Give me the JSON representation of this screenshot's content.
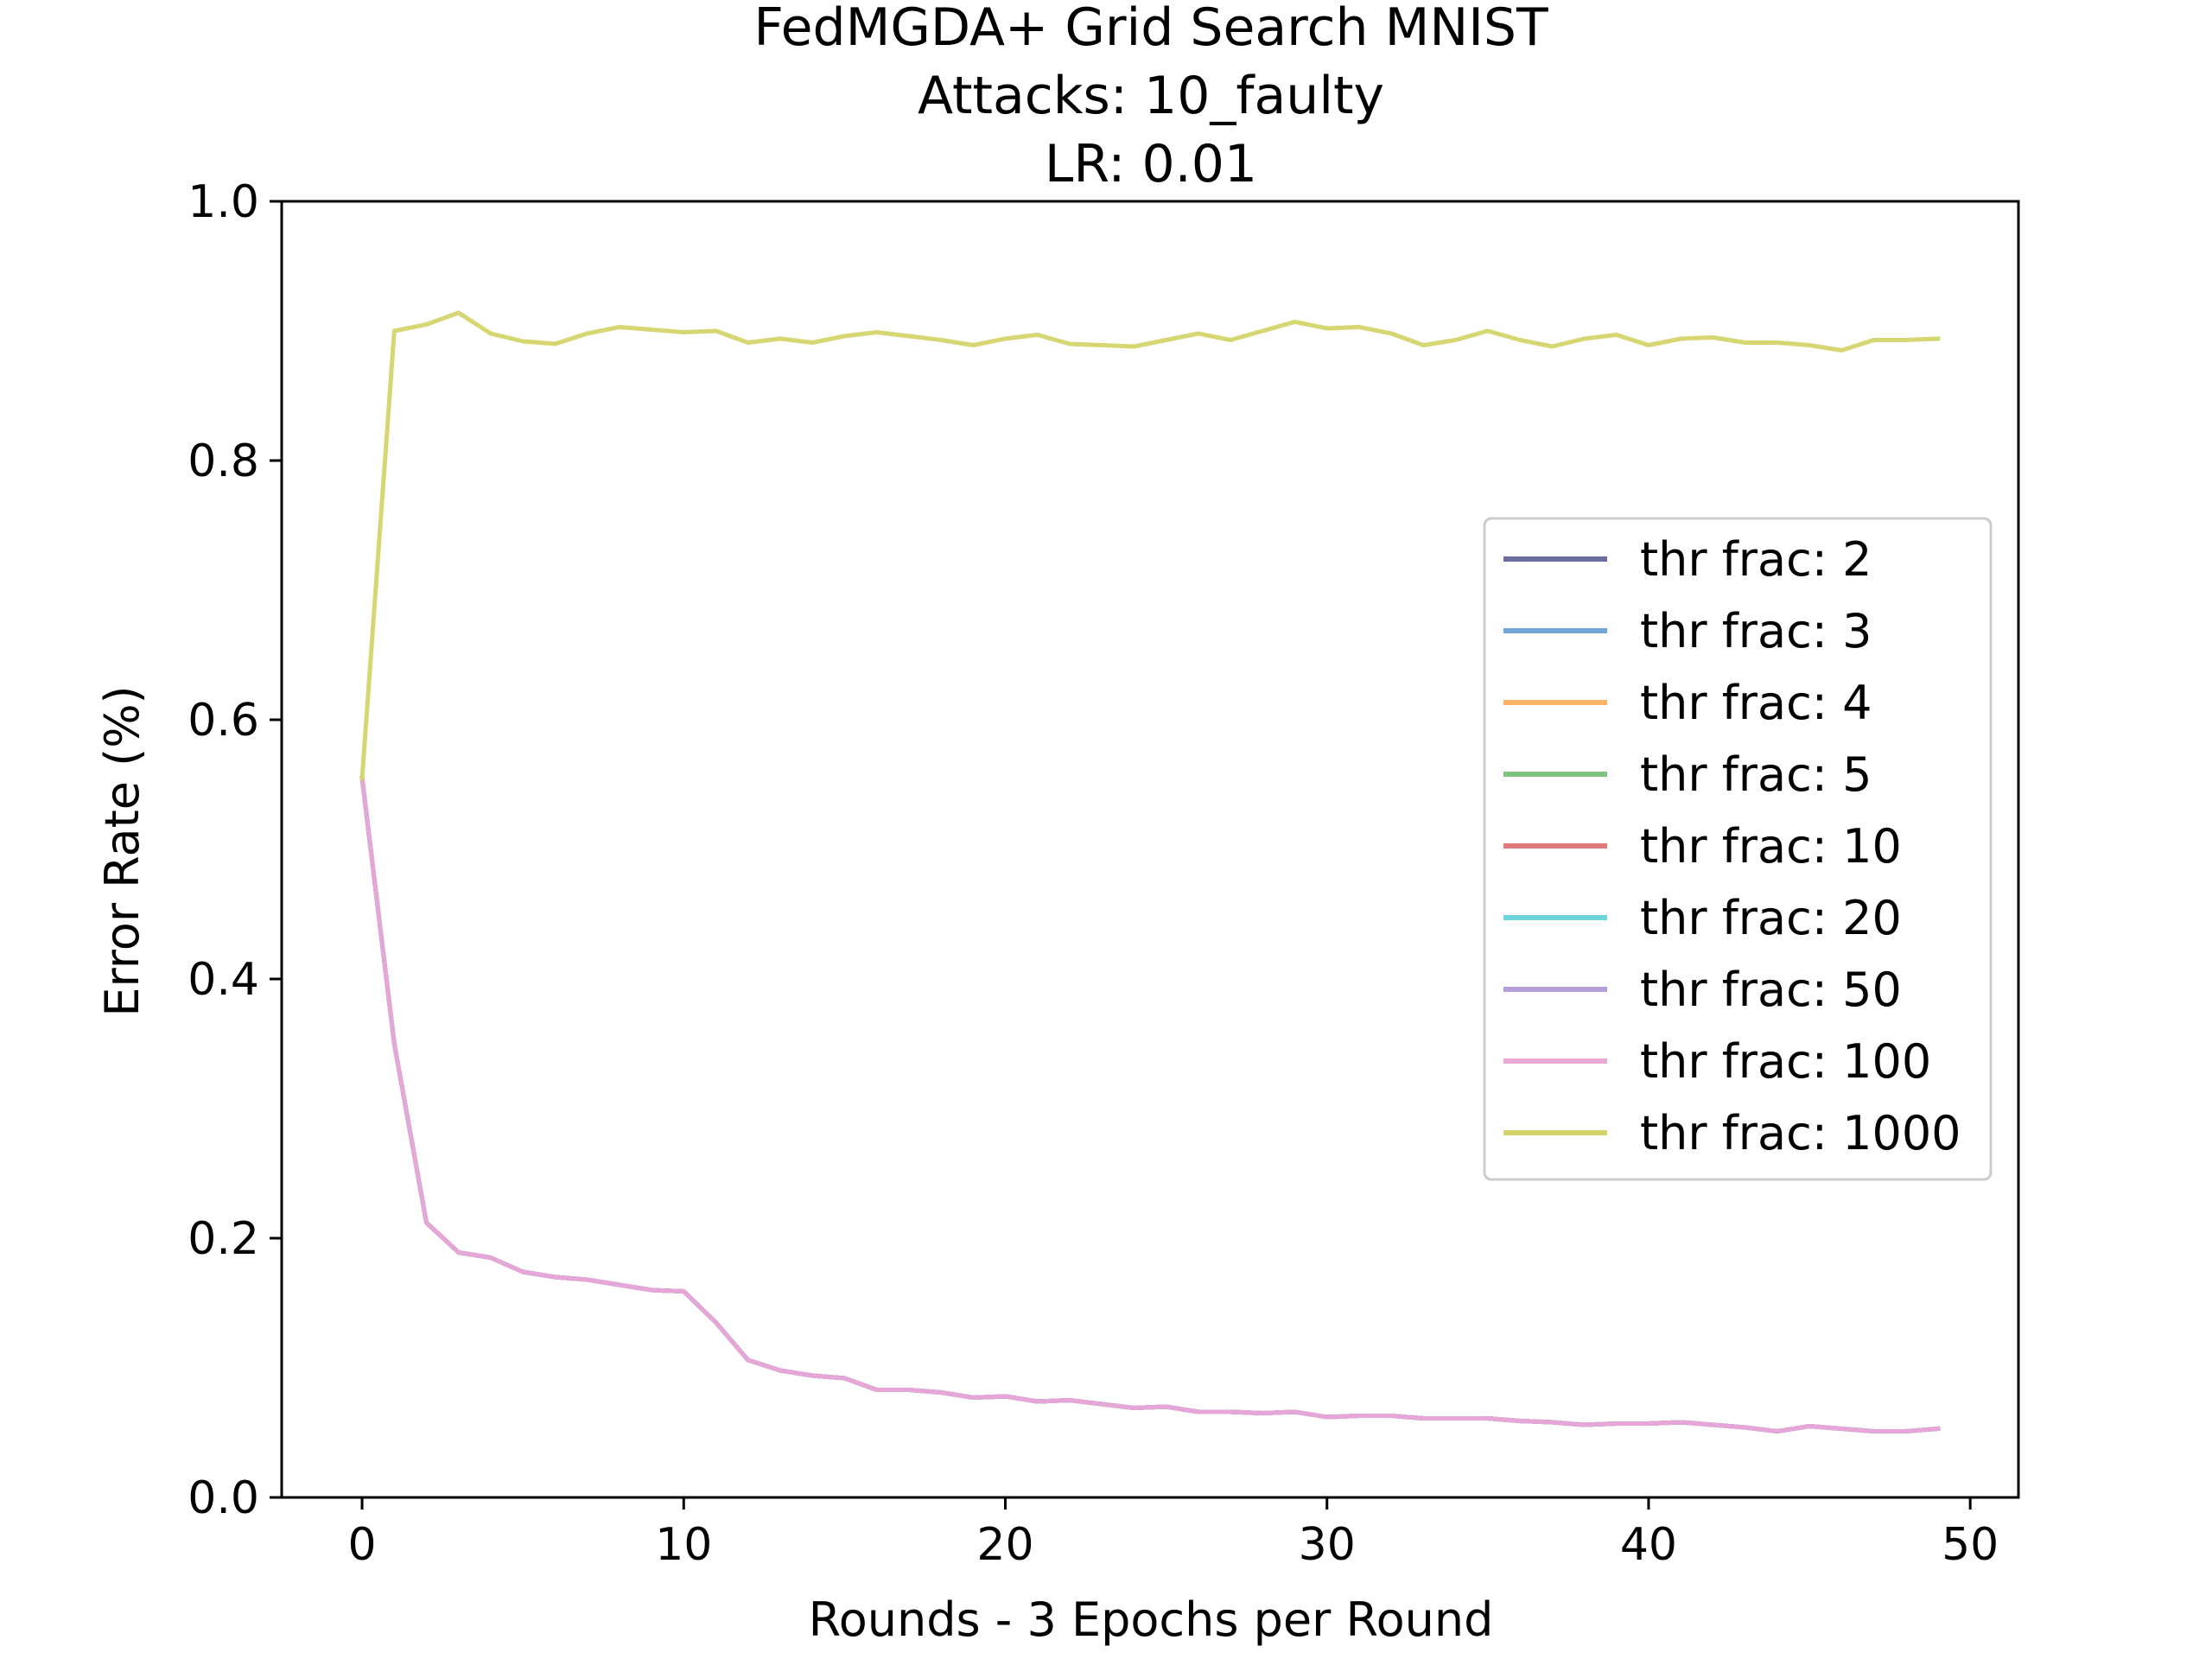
{
  "chart_data": {
    "type": "line",
    "title": [
      "FedMGDA+ Grid Search MNIST",
      "Attacks: 10_faulty",
      "LR: 0.01"
    ],
    "xlabel": "Rounds - 3 Epochs per Round",
    "ylabel": "Error Rate (%)",
    "xlim": [
      -2.5,
      51.5
    ],
    "ylim": [
      0.0,
      1.0
    ],
    "xticks": [
      0,
      10,
      20,
      30,
      40,
      50
    ],
    "xtick_labels": [
      "0",
      "10",
      "20",
      "30",
      "40",
      "50"
    ],
    "yticks": [
      0.0,
      0.2,
      0.4,
      0.6,
      0.8,
      1.0
    ],
    "ytick_labels": [
      "0.0",
      "0.2",
      "0.4",
      "0.6",
      "0.8",
      "1.0"
    ],
    "grid": false,
    "legend_position": "center-right",
    "x": [
      0,
      1,
      2,
      3,
      4,
      5,
      6,
      7,
      8,
      9,
      10,
      11,
      12,
      13,
      14,
      15,
      16,
      17,
      18,
      19,
      20,
      21,
      22,
      23,
      24,
      25,
      26,
      27,
      28,
      29,
      30,
      31,
      32,
      33,
      34,
      35,
      36,
      37,
      38,
      39,
      40,
      41,
      42,
      43,
      44,
      45,
      46,
      47,
      48,
      49
    ],
    "series": [
      {
        "name": "thr frac: 2",
        "color": "#6b6fa0",
        "values": [
          0.555,
          0.35,
          0.212,
          0.189,
          0.185,
          0.174,
          0.17,
          0.168,
          0.164,
          0.16,
          0.159,
          0.135,
          0.106,
          0.098,
          0.094,
          0.092,
          0.083,
          0.083,
          0.081,
          0.077,
          0.078,
          0.074,
          0.075,
          0.072,
          0.069,
          0.07,
          0.066,
          0.066,
          0.065,
          0.066,
          0.062,
          0.063,
          0.063,
          0.061,
          0.061,
          0.061,
          0.059,
          0.058,
          0.056,
          0.057,
          0.057,
          0.058,
          0.056,
          0.054,
          0.051,
          0.055,
          0.053,
          0.051,
          0.051,
          0.053
        ]
      },
      {
        "name": "thr frac: 3",
        "color": "#72a6d6",
        "values": [
          0.555,
          0.35,
          0.212,
          0.189,
          0.185,
          0.174,
          0.17,
          0.168,
          0.164,
          0.16,
          0.159,
          0.135,
          0.106,
          0.098,
          0.094,
          0.092,
          0.083,
          0.083,
          0.081,
          0.077,
          0.078,
          0.074,
          0.075,
          0.072,
          0.069,
          0.07,
          0.066,
          0.066,
          0.065,
          0.066,
          0.062,
          0.063,
          0.063,
          0.061,
          0.061,
          0.061,
          0.059,
          0.058,
          0.056,
          0.057,
          0.057,
          0.058,
          0.056,
          0.054,
          0.051,
          0.055,
          0.053,
          0.051,
          0.051,
          0.053
        ]
      },
      {
        "name": "thr frac: 4",
        "color": "#fdb365",
        "values": [
          0.555,
          0.35,
          0.212,
          0.189,
          0.185,
          0.174,
          0.17,
          0.168,
          0.164,
          0.16,
          0.159,
          0.135,
          0.106,
          0.098,
          0.094,
          0.092,
          0.083,
          0.083,
          0.081,
          0.077,
          0.078,
          0.074,
          0.075,
          0.072,
          0.069,
          0.07,
          0.066,
          0.066,
          0.065,
          0.066,
          0.062,
          0.063,
          0.063,
          0.061,
          0.061,
          0.061,
          0.059,
          0.058,
          0.056,
          0.057,
          0.057,
          0.058,
          0.056,
          0.054,
          0.051,
          0.055,
          0.053,
          0.051,
          0.051,
          0.053
        ]
      },
      {
        "name": "thr frac: 5",
        "color": "#7fc47e",
        "values": [
          0.555,
          0.35,
          0.212,
          0.189,
          0.185,
          0.174,
          0.17,
          0.168,
          0.164,
          0.16,
          0.159,
          0.135,
          0.106,
          0.098,
          0.094,
          0.092,
          0.083,
          0.083,
          0.081,
          0.077,
          0.078,
          0.074,
          0.075,
          0.072,
          0.069,
          0.07,
          0.066,
          0.066,
          0.065,
          0.066,
          0.062,
          0.063,
          0.063,
          0.061,
          0.061,
          0.061,
          0.059,
          0.058,
          0.056,
          0.057,
          0.057,
          0.058,
          0.056,
          0.054,
          0.051,
          0.055,
          0.053,
          0.051,
          0.051,
          0.053
        ]
      },
      {
        "name": "thr frac: 10",
        "color": "#e07b7b",
        "values": [
          0.555,
          0.35,
          0.212,
          0.189,
          0.185,
          0.174,
          0.17,
          0.168,
          0.164,
          0.16,
          0.159,
          0.135,
          0.106,
          0.098,
          0.094,
          0.092,
          0.083,
          0.083,
          0.081,
          0.077,
          0.078,
          0.074,
          0.075,
          0.072,
          0.069,
          0.07,
          0.066,
          0.066,
          0.065,
          0.066,
          0.062,
          0.063,
          0.063,
          0.061,
          0.061,
          0.061,
          0.059,
          0.058,
          0.056,
          0.057,
          0.057,
          0.058,
          0.056,
          0.054,
          0.051,
          0.055,
          0.053,
          0.051,
          0.051,
          0.053
        ]
      },
      {
        "name": "thr frac: 20",
        "color": "#6fd3dc",
        "values": [
          0.555,
          0.35,
          0.212,
          0.189,
          0.185,
          0.174,
          0.17,
          0.168,
          0.164,
          0.16,
          0.159,
          0.135,
          0.106,
          0.098,
          0.094,
          0.092,
          0.083,
          0.083,
          0.081,
          0.077,
          0.078,
          0.074,
          0.075,
          0.072,
          0.069,
          0.07,
          0.066,
          0.066,
          0.065,
          0.066,
          0.062,
          0.063,
          0.063,
          0.061,
          0.061,
          0.061,
          0.059,
          0.058,
          0.056,
          0.057,
          0.057,
          0.058,
          0.056,
          0.054,
          0.051,
          0.055,
          0.053,
          0.051,
          0.051,
          0.053
        ]
      },
      {
        "name": "thr frac: 50",
        "color": "#b59ed8",
        "values": [
          0.555,
          0.35,
          0.212,
          0.189,
          0.185,
          0.174,
          0.17,
          0.168,
          0.164,
          0.16,
          0.159,
          0.135,
          0.106,
          0.098,
          0.094,
          0.092,
          0.083,
          0.083,
          0.081,
          0.077,
          0.078,
          0.074,
          0.075,
          0.072,
          0.069,
          0.07,
          0.066,
          0.066,
          0.065,
          0.066,
          0.062,
          0.063,
          0.063,
          0.061,
          0.061,
          0.061,
          0.059,
          0.058,
          0.056,
          0.057,
          0.057,
          0.058,
          0.056,
          0.054,
          0.051,
          0.055,
          0.053,
          0.051,
          0.051,
          0.053
        ]
      },
      {
        "name": "thr frac: 100",
        "color": "#e9a8d8",
        "values": [
          0.555,
          0.35,
          0.212,
          0.189,
          0.185,
          0.174,
          0.17,
          0.168,
          0.164,
          0.16,
          0.159,
          0.135,
          0.106,
          0.098,
          0.094,
          0.092,
          0.083,
          0.083,
          0.081,
          0.077,
          0.078,
          0.074,
          0.075,
          0.072,
          0.069,
          0.07,
          0.066,
          0.066,
          0.065,
          0.066,
          0.062,
          0.063,
          0.063,
          0.061,
          0.061,
          0.061,
          0.059,
          0.058,
          0.056,
          0.057,
          0.057,
          0.058,
          0.056,
          0.054,
          0.051,
          0.055,
          0.053,
          0.051,
          0.051,
          0.053
        ]
      },
      {
        "name": "thr frac: 1000",
        "color": "#d4d46a",
        "values": [
          0.555,
          0.9,
          0.905,
          0.914,
          0.898,
          0.892,
          0.89,
          0.898,
          0.903,
          0.901,
          0.899,
          0.9,
          0.891,
          0.894,
          0.891,
          0.896,
          0.899,
          0.896,
          0.893,
          0.889,
          0.894,
          0.897,
          0.89,
          0.889,
          0.888,
          0.893,
          0.898,
          0.893,
          0.9,
          0.907,
          0.902,
          0.903,
          0.898,
          0.889,
          0.893,
          0.9,
          0.893,
          0.888,
          0.894,
          0.897,
          0.889,
          0.894,
          0.895,
          0.891,
          0.891,
          0.889,
          0.885,
          0.893,
          0.893,
          0.894
        ]
      }
    ]
  }
}
